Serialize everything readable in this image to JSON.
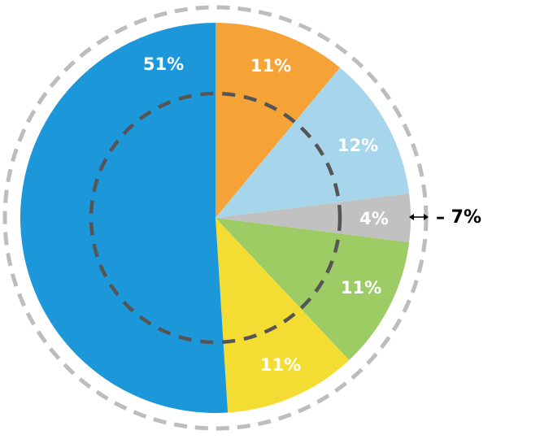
{
  "chart_data": {
    "type": "pie",
    "categories": [
      null,
      null,
      null,
      null,
      null,
      null
    ],
    "values": [
      11,
      12,
      4,
      11,
      11,
      51
    ],
    "value_labels": [
      "11%",
      "12%",
      "4%",
      "11%",
      "11%",
      "51%"
    ],
    "colors": [
      "#f5a236",
      "#a7d5ec",
      "#c1c1c1",
      "#9dcb64",
      "#f4dd33",
      "#1c98da"
    ],
    "annotation": "– 7%"
  }
}
